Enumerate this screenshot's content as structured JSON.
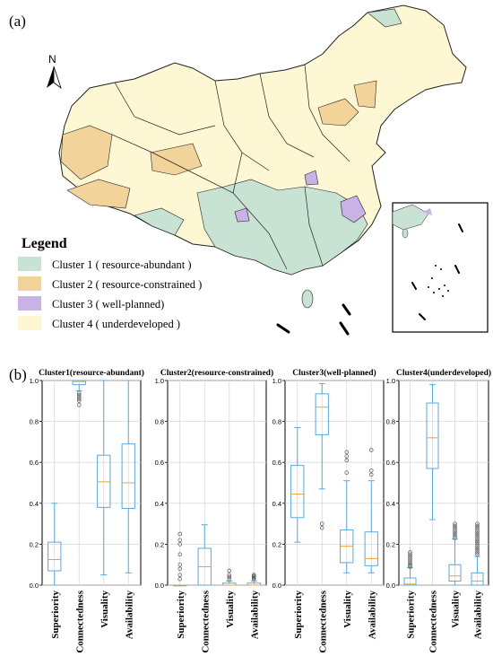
{
  "panel_a_label": "(a)",
  "panel_b_label": "(b)",
  "north_label": "N",
  "legend": {
    "title": "Legend",
    "items": [
      {
        "label": "Cluster 1 ( resource-abundant )",
        "color": "#c8e3d3"
      },
      {
        "label": "Cluster 2 ( resource-constrained )",
        "color": "#f2d49a"
      },
      {
        "label": "Cluster 3 ( well-planned)",
        "color": "#c9b2e6"
      },
      {
        "label": "Cluster 4 ( underdeveloped )",
        "color": "#fdf7d3"
      }
    ]
  },
  "colors": {
    "box": "#5aa9dc",
    "median": "#f0a030",
    "grid": "#d9d9d9",
    "boundary": "#222222"
  },
  "chart_data": [
    {
      "type": "box",
      "title": "Cluster1(resource-abundant)",
      "categories": [
        "Superiority",
        "Connectedness",
        "Visuality",
        "Availability"
      ],
      "ylim": [
        0,
        1
      ],
      "yticks": [
        "0.0",
        "0.2",
        "0.4",
        "0.6",
        "0.8",
        "1.0"
      ],
      "grid": true,
      "boxes": [
        {
          "whislo": 0.0,
          "q1": 0.07,
          "med": 0.125,
          "q3": 0.21,
          "whishi": 0.4,
          "fliers": []
        },
        {
          "whislo": 0.95,
          "q1": 0.98,
          "med": 0.995,
          "q3": 1.0,
          "whishi": 1.0,
          "fliers": [
            0.94,
            0.93,
            0.92,
            0.91,
            0.9,
            0.88
          ]
        },
        {
          "whislo": 0.05,
          "q1": 0.38,
          "med": 0.505,
          "q3": 0.635,
          "whishi": 1.0,
          "fliers": []
        },
        {
          "whislo": 0.06,
          "q1": 0.375,
          "med": 0.5,
          "q3": 0.69,
          "whishi": 1.0,
          "fliers": []
        }
      ]
    },
    {
      "type": "box",
      "title": "Cluster2(resource-constrained)",
      "categories": [
        "Superiority",
        "Connectedness",
        "Visuality",
        "Availability"
      ],
      "ylim": [
        0,
        1
      ],
      "yticks": [
        "0.0",
        "0.2",
        "0.4",
        "0.6",
        "0.8",
        "1.0"
      ],
      "grid": true,
      "boxes": [
        {
          "whislo": 0.0,
          "q1": 0.0,
          "med": 0.0,
          "q3": 0.0,
          "whishi": 0.0,
          "fliers": [
            0.25,
            0.22,
            0.2,
            0.15,
            0.1,
            0.08,
            0.05,
            0.03
          ]
        },
        {
          "whislo": 0.0,
          "q1": 0.0,
          "med": 0.09,
          "q3": 0.18,
          "whishi": 0.295,
          "fliers": []
        },
        {
          "whislo": 0.0,
          "q1": 0.0,
          "med": 0.0,
          "q3": 0.01,
          "whishi": 0.02,
          "fliers": [
            0.07,
            0.05,
            0.04,
            0.03
          ]
        },
        {
          "whislo": 0.0,
          "q1": 0.0,
          "med": 0.0,
          "q3": 0.01,
          "whishi": 0.02,
          "fliers": [
            0.05,
            0.045,
            0.04,
            0.035,
            0.03
          ]
        }
      ]
    },
    {
      "type": "box",
      "title": "Cluster3(well-planned)",
      "categories": [
        "Superiority",
        "Connectedness",
        "Visuality",
        "Availability"
      ],
      "ylim": [
        0,
        1
      ],
      "yticks": [
        "0.0",
        "0.2",
        "0.4",
        "0.6",
        "0.8",
        "1.0"
      ],
      "grid": true,
      "boxes": [
        {
          "whislo": 0.21,
          "q1": 0.33,
          "med": 0.445,
          "q3": 0.585,
          "whishi": 0.77,
          "fliers": []
        },
        {
          "whislo": 0.47,
          "q1": 0.735,
          "med": 0.87,
          "q3": 0.935,
          "whishi": 0.985,
          "fliers": [
            0.3,
            0.28
          ]
        },
        {
          "whislo": 0.06,
          "q1": 0.11,
          "med": 0.19,
          "q3": 0.27,
          "whishi": 0.51,
          "fliers": [
            0.65,
            0.63,
            0.61,
            0.55
          ]
        },
        {
          "whislo": 0.06,
          "q1": 0.095,
          "med": 0.13,
          "q3": 0.26,
          "whishi": 0.51,
          "fliers": [
            0.66,
            0.56,
            0.54
          ]
        }
      ]
    },
    {
      "type": "box",
      "title": "Cluster4(underdeveloped)",
      "categories": [
        "Superiority",
        "Connectedness",
        "Visuality",
        "Availability"
      ],
      "ylim": [
        0,
        1
      ],
      "yticks": [
        "0.0",
        "0.2",
        "0.4",
        "0.6",
        "0.8",
        "1.0"
      ],
      "grid": true,
      "boxes": [
        {
          "whislo": 0.0,
          "q1": 0.0,
          "med": 0.005,
          "q3": 0.035,
          "whishi": 0.085,
          "fliers": [
            0.16,
            0.15,
            0.14,
            0.13,
            0.12,
            0.11,
            0.1,
            0.095,
            0.09
          ]
        },
        {
          "whislo": 0.32,
          "q1": 0.57,
          "med": 0.72,
          "q3": 0.89,
          "whishi": 0.98,
          "fliers": []
        },
        {
          "whislo": 0.0,
          "q1": 0.02,
          "med": 0.045,
          "q3": 0.1,
          "whishi": 0.225,
          "fliers": [
            0.3,
            0.29,
            0.28,
            0.27,
            0.26,
            0.25,
            0.24,
            0.23
          ]
        },
        {
          "whislo": 0.0,
          "q1": 0.0,
          "med": 0.02,
          "q3": 0.06,
          "whishi": 0.14,
          "fliers": [
            0.3,
            0.29,
            0.28,
            0.27,
            0.26,
            0.25,
            0.24,
            0.23,
            0.22,
            0.21,
            0.2,
            0.19,
            0.18,
            0.17,
            0.16,
            0.15
          ]
        }
      ]
    }
  ]
}
